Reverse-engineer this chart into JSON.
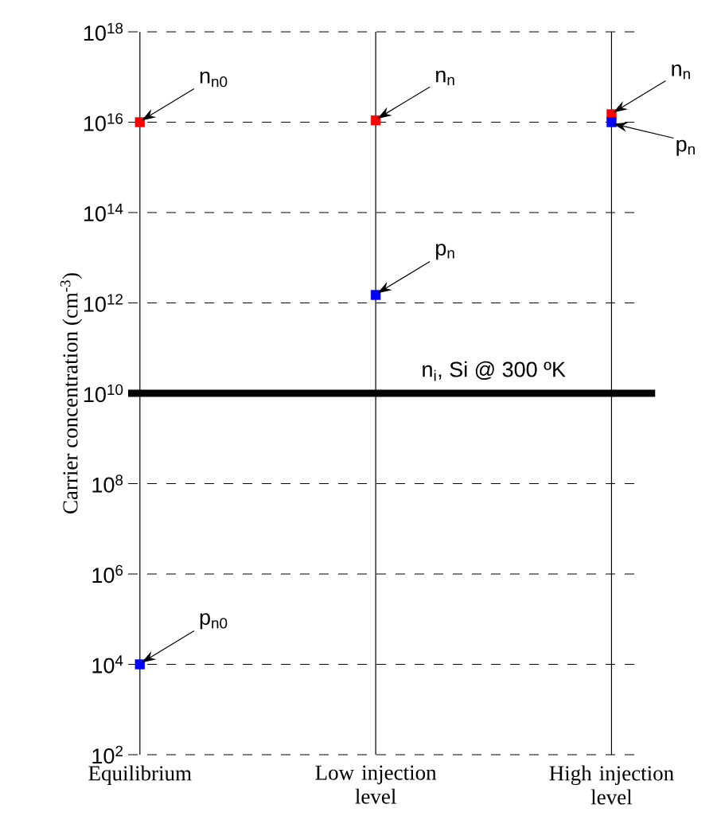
{
  "chart_data": {
    "type": "scatter",
    "categories": [
      "Equilibrium",
      "Low injection level",
      "High injection level"
    ],
    "series": [
      {
        "color": "#ff0000",
        "values": [
          1e+16,
          1.1e+16,
          1.5e+16
        ]
      },
      {
        "color": "#0000ff",
        "values": [
          10000.0,
          1500000000000.0,
          1e+16
        ]
      }
    ],
    "log": true,
    "marker": "square",
    "ylim": [
      100,
      1e+18
    ],
    "yticks": [
      {
        "value": 100,
        "label": "10$^{2}$"
      },
      {
        "value": 10000,
        "label": "10$^{4}$"
      },
      {
        "value": 1000000.0,
        "label": "10$^{6}$"
      },
      {
        "value": 100000000.0,
        "label": "10$^{8}$"
      },
      {
        "value": 10000000000.0,
        "label": "10$^{10}$"
      },
      {
        "value": 1000000000000.0,
        "label": "10$^{12}$"
      },
      {
        "value": 100000000000000.0,
        "label": "10$^{14}$"
      },
      {
        "value": 1e+16,
        "label": "10$^{16}$"
      },
      {
        "value": 1e+18,
        "label": "10$^{18}$"
      }
    ],
    "ylabel": "Carrier concentration (cm$^{-3}$)",
    "grid": true,
    "ref_lines": [
      {
        "axis": "y",
        "value": 10000000000.0,
        "label": "n$_{i}$, Si @ 300 ºK",
        "color": "#000000"
      }
    ],
    "annotations": [
      "n$_{n0}$",
      "p$_{n0}$",
      "n$_{n}$",
      "p$_{n}$",
      "n$_{n}$",
      "p$_{n}$"
    ]
  }
}
